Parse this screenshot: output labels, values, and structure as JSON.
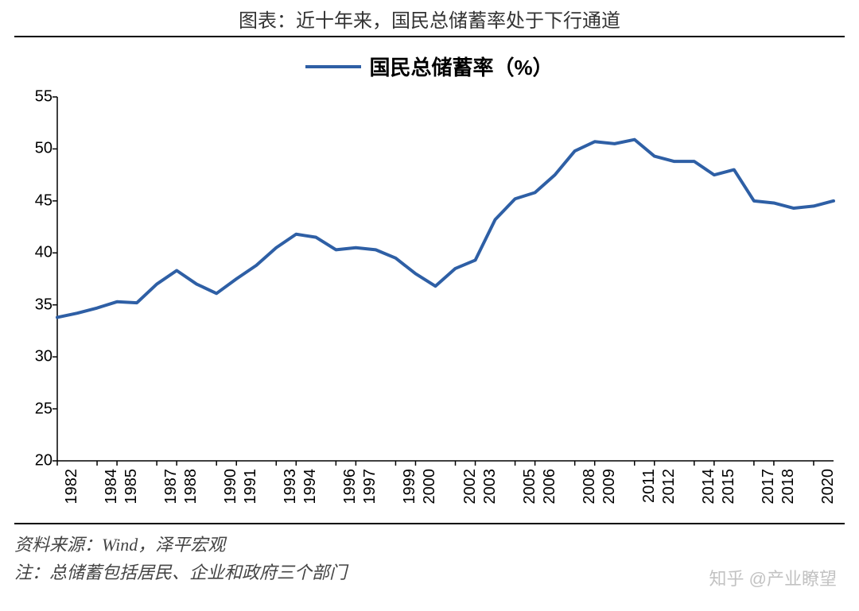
{
  "title": "图表：近十年来，国民总储蓄率处于下行通道",
  "legend": {
    "label": "国民总储蓄率（%）",
    "color": "#2e5fa5"
  },
  "chart": {
    "type": "line",
    "line_color": "#2e5fa5",
    "line_width": 4,
    "background_color": "#ffffff",
    "axis_color": "#000000",
    "tick_length": 6,
    "ylim": [
      20,
      55
    ],
    "ytick_step": 5,
    "yticks": [
      20,
      25,
      30,
      35,
      40,
      45,
      50,
      55
    ],
    "x_start": 1982,
    "x_end": 2021,
    "xticks": [
      1982,
      1984,
      1985,
      1987,
      1988,
      1990,
      1991,
      1993,
      1994,
      1996,
      1997,
      1999,
      2000,
      2002,
      2003,
      2005,
      2006,
      2008,
      2009,
      2011,
      2012,
      2014,
      2015,
      2017,
      2018,
      2020
    ],
    "series": {
      "years": [
        1982,
        1983,
        1984,
        1985,
        1986,
        1987,
        1988,
        1989,
        1990,
        1991,
        1992,
        1993,
        1994,
        1995,
        1996,
        1997,
        1998,
        1999,
        2000,
        2001,
        2002,
        2003,
        2004,
        2005,
        2006,
        2007,
        2008,
        2009,
        2010,
        2011,
        2012,
        2013,
        2014,
        2015,
        2016,
        2017,
        2018,
        2019,
        2020,
        2021
      ],
      "values": [
        33.8,
        34.2,
        34.7,
        35.3,
        35.2,
        37.0,
        38.3,
        37.0,
        36.1,
        37.5,
        38.8,
        40.5,
        41.8,
        41.5,
        40.3,
        40.5,
        40.3,
        39.5,
        38.0,
        36.8,
        38.5,
        39.3,
        43.2,
        45.2,
        45.8,
        47.5,
        49.8,
        50.7,
        50.5,
        50.9,
        49.3,
        48.8,
        48.8,
        47.5,
        48.0,
        45.0,
        44.8,
        44.3,
        44.5,
        45.0
      ]
    },
    "label_fontsize": 20,
    "x_label_rotation": -90
  },
  "source": "资料来源：Wind，泽平宏观",
  "note": "注：总储蓄包括居民、企业和政府三个部门",
  "watermark": "知乎 @产业瞭望",
  "rule_color": "#000000"
}
